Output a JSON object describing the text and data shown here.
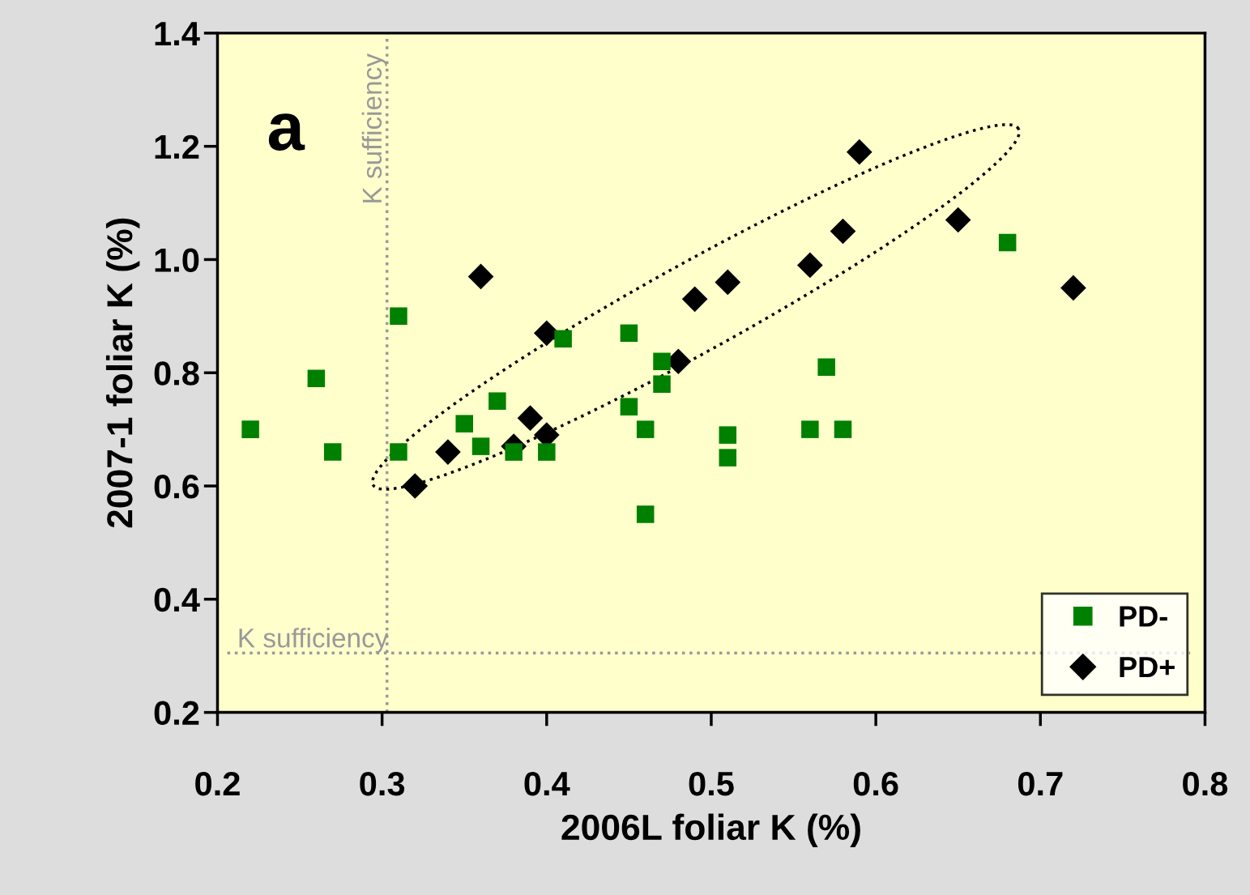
{
  "chart_data": {
    "type": "scatter",
    "xlabel": "2006L foliar K (%)",
    "ylabel": "2007-1 foliar K (%)",
    "xlim": [
      0.2,
      0.8
    ],
    "ylim": [
      0.2,
      1.4
    ],
    "xticks": [
      0.2,
      0.3,
      0.4,
      0.5,
      0.6,
      0.7,
      0.8
    ],
    "yticks": [
      0.2,
      0.4,
      0.6,
      0.8,
      {
        "value": 1.0,
        "label": "1.0"
      },
      1.2,
      1.4
    ],
    "grid": false,
    "legend": "bottom right",
    "series": [
      {
        "name": "PD-",
        "color": "#008000",
        "marker": "square",
        "x": [
          0.22,
          0.26,
          0.27,
          0.31,
          0.31,
          0.35,
          0.36,
          0.37,
          0.38,
          0.4,
          0.41,
          0.45,
          0.45,
          0.46,
          0.46,
          0.47,
          0.47,
          0.51,
          0.51,
          0.56,
          0.57,
          0.58,
          0.68
        ],
        "values": [
          0.7,
          0.79,
          0.66,
          0.9,
          0.66,
          0.71,
          0.67,
          0.75,
          0.66,
          0.66,
          0.86,
          0.87,
          0.74,
          0.7,
          0.55,
          0.82,
          0.78,
          0.69,
          0.65,
          0.7,
          0.81,
          0.7,
          1.03
        ]
      },
      {
        "name": "PD+",
        "color": "#000000",
        "marker": "diamond",
        "x": [
          0.32,
          0.34,
          0.36,
          0.38,
          0.39,
          0.4,
          0.4,
          0.48,
          0.49,
          0.51,
          0.56,
          0.58,
          0.59,
          0.65,
          0.72
        ],
        "values": [
          0.6,
          0.66,
          0.97,
          0.67,
          0.72,
          0.87,
          0.69,
          0.82,
          0.93,
          0.96,
          0.99,
          1.05,
          1.19,
          1.07,
          0.95
        ]
      }
    ],
    "ref_lines": [
      {
        "axis": "x",
        "value": 0.303,
        "label": "K sufficiency",
        "color": "#999999",
        "line_style": "dotted"
      },
      {
        "axis": "y",
        "value": 0.305,
        "label": "K sufficiency",
        "color": "#999999",
        "line_style": "dotted"
      }
    ],
    "annotations": [
      "a"
    ]
  }
}
